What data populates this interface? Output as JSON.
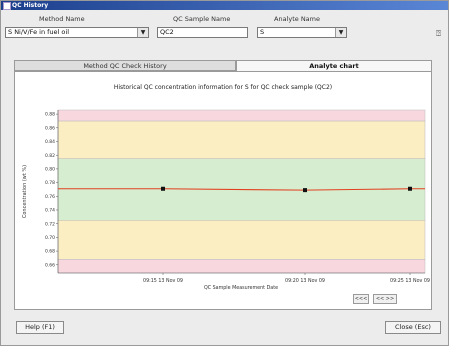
{
  "window": {
    "title": "QC History"
  },
  "fields": {
    "method_label": "Method Name",
    "method_value": "S Ni/V/Fe in fuel oil",
    "sample_label": "QC Sample Name",
    "sample_value": "QC2",
    "analyte_label": "Analyte Name",
    "analyte_value": "S"
  },
  "tabs": [
    {
      "label": "Method QC Check History"
    },
    {
      "label": "Analyte chart"
    }
  ],
  "nav": {
    "prev": "<<<",
    "next": "<< >>"
  },
  "footer": {
    "help": "Help (F1)",
    "close": "Close (Esc)"
  },
  "colors": {
    "good": "#d6eecf",
    "warn": "#fbeec2",
    "bad": "#f8d7df",
    "line": "#e24020"
  },
  "chart_data": {
    "type": "line",
    "title": "Historical QC concentration information for S for QC check sample (QC2)",
    "xlabel": "QC Sample Measurement Date",
    "ylabel": "Concentration (wt %)",
    "ylim": [
      0.648,
      0.886
    ],
    "yticks": [
      0.66,
      0.68,
      0.7,
      0.72,
      0.74,
      0.76,
      0.78,
      0.8,
      0.82,
      0.84,
      0.86,
      0.88
    ],
    "bands": [
      {
        "from": 0.648,
        "to": 0.668,
        "zone": "bad"
      },
      {
        "from": 0.668,
        "to": 0.725,
        "zone": "warn"
      },
      {
        "from": 0.725,
        "to": 0.815,
        "zone": "good"
      },
      {
        "from": 0.815,
        "to": 0.87,
        "zone": "warn"
      },
      {
        "from": 0.87,
        "to": 0.886,
        "zone": "bad"
      }
    ],
    "x_tick_labels": [
      "09:15 13 Nov 09",
      "09:20 13 Nov 09",
      "09:25 13 Nov 09"
    ],
    "points": [
      {
        "x": "09:15 13 Nov 09",
        "y": 0.771
      },
      {
        "x": "09:20 13 Nov 09",
        "y": 0.769
      },
      {
        "x": "09:25 13 Nov 09",
        "y": 0.771
      }
    ],
    "grid": false
  }
}
